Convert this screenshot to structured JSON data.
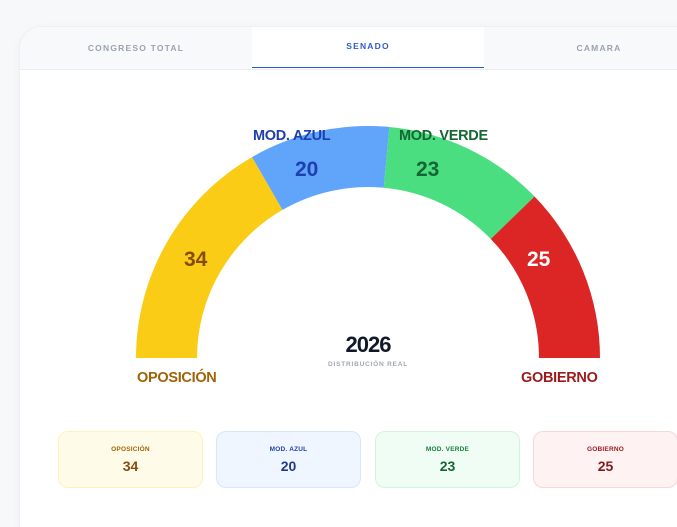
{
  "tabs": [
    {
      "label": "CONGRESO TOTAL",
      "active": false
    },
    {
      "label": "SENADO",
      "active": true
    },
    {
      "label": "CAMARA",
      "active": false
    }
  ],
  "gauge": {
    "year": "2026",
    "subtitle": "DISTRIBUCIÓN REAL",
    "segments": [
      {
        "name": "OPOSICIÓN",
        "value": "34",
        "color": "#facc15",
        "label_color": "#a16207",
        "number_color": "#854d0e"
      },
      {
        "name": "MOD. AZUL",
        "value": "20",
        "color": "#60a5fa",
        "label_color": "#1e40af",
        "number_color": "#1e40af"
      },
      {
        "name": "MOD. VERDE",
        "value": "23",
        "color": "#4ade80",
        "label_color": "#166534",
        "number_color": "#166534"
      },
      {
        "name": "GOBIERNO",
        "value": "25",
        "color": "#dc2626",
        "label_color": "#991b1b",
        "number_color": "#ffffff"
      }
    ]
  },
  "cards": [
    {
      "name": "OPOSICIÓN",
      "value": "34",
      "bg": "#fefce8",
      "border": "#fdf3b8",
      "name_color": "#a16207",
      "value_color": "#854d0e"
    },
    {
      "name": "MOD. AZUL",
      "value": "20",
      "bg": "#eff6ff",
      "border": "#d6e6fb",
      "name_color": "#1e40af",
      "value_color": "#1e3a8a"
    },
    {
      "name": "MOD. VERDE",
      "value": "23",
      "bg": "#f0fdf4",
      "border": "#d3f3df",
      "name_color": "#15803d",
      "value_color": "#166534"
    },
    {
      "name": "GOBIERNO",
      "value": "25",
      "bg": "#fef2f2",
      "border": "#f8d7d7",
      "name_color": "#991b1b",
      "value_color": "#7f1d1d"
    }
  ]
}
